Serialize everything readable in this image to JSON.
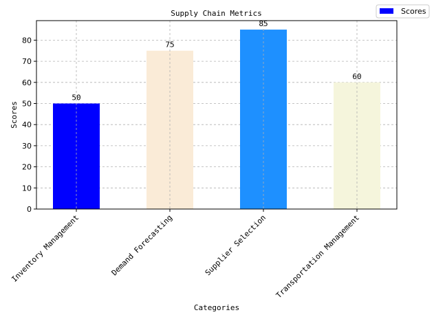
{
  "chart_data": {
    "type": "bar",
    "title": "Supply Chain Metrics",
    "xlabel": "Categories",
    "ylabel": "Scores",
    "categories": [
      "Inventory Management",
      "Demand Forecasting",
      "Supplier Selection",
      "Transportation Management"
    ],
    "series": [
      {
        "name": "Scores",
        "values": [
          50,
          75,
          85,
          60
        ],
        "colors": [
          "#0000ff",
          "#faebd7",
          "#1e90ff",
          "#f5f5dc"
        ]
      }
    ],
    "ylim": [
      0,
      89.25
    ],
    "yticks": [
      0,
      10,
      20,
      30,
      40,
      50,
      60,
      70,
      80
    ],
    "grid": true,
    "grid_style": "dashed",
    "legend_placement": "top-right",
    "legend_color": "#0000ff",
    "data_labels": true
  }
}
